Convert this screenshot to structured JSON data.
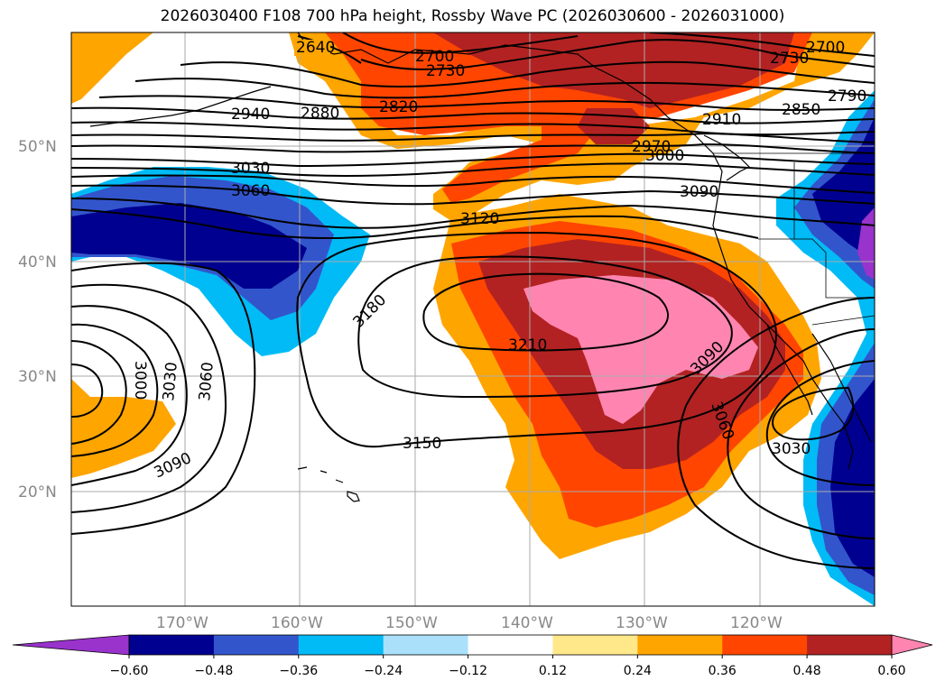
{
  "title": "2026030400 F108 700 hPa height, Rossby Wave PC (2026030600 - 2026031000)",
  "lat_labels": [
    "50°N",
    "40°N",
    "30°N",
    "20°N"
  ],
  "lon_labels": [
    "170°W",
    "160°W",
    "150°W",
    "140°W",
    "130°W",
    "120°W"
  ],
  "colorbar": {
    "ticks": [
      "−0.60",
      "−0.48",
      "−0.36",
      "−0.24",
      "−0.12",
      "0.12",
      "0.24",
      "0.36",
      "0.48",
      "0.60"
    ],
    "colors": [
      "#9933cc",
      "#000090",
      "#3355cc",
      "#00bbf5",
      "#aae0fa",
      "#ffffff",
      "#ffe88a",
      "#ffa500",
      "#ff4500",
      "#b22222",
      "#ff85b0"
    ]
  },
  "contour_labels": [
    "2700",
    "2730",
    "2820",
    "2700",
    "2730",
    "2790",
    "2850",
    "2910",
    "2970",
    "3000",
    "3090",
    "2940",
    "2880",
    "3030",
    "3060",
    "3120",
    "3180",
    "3210",
    "3090",
    "3060",
    "3030",
    "3150",
    "3000",
    "3030",
    "3060",
    "3090",
    "2640"
  ],
  "map_colors": {
    "positive_orange": "#ffa500",
    "positive_red": "#ff4500",
    "positive_darkred": "#b22222",
    "positive_pink": "#ff85b0",
    "negative_blue": "#3355cc",
    "negative_navy": "#000090",
    "negative_cyan": "#00bbf5",
    "negative_purple": "#9933cc",
    "gridline": "#aaaaaa"
  }
}
